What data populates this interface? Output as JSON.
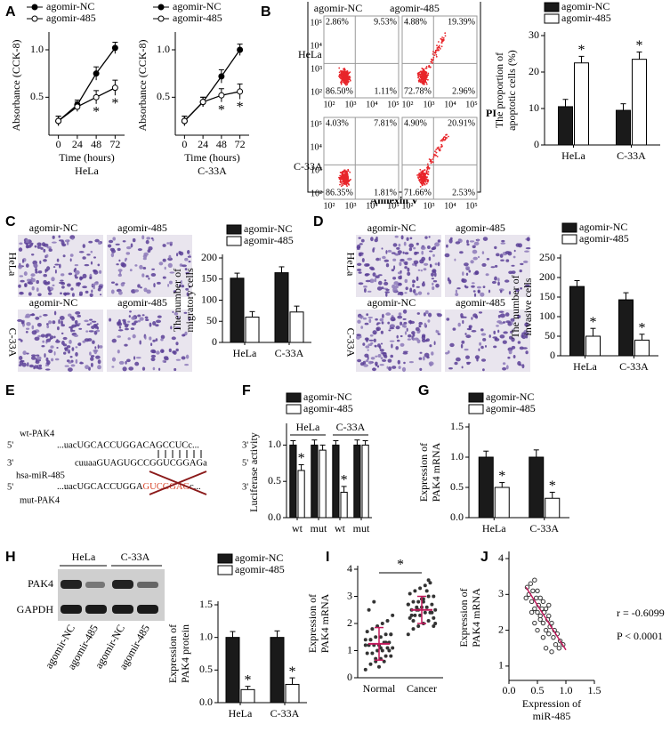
{
  "panel_labels": [
    "A",
    "B",
    "C",
    "D",
    "E",
    "F",
    "G",
    "H",
    "I",
    "J"
  ],
  "chart_data": [
    {
      "type": "line",
      "subtitle": "HeLa",
      "xlabel": "Time (hours)",
      "ylabel": "Absorbance (CCK-8)",
      "x": [
        0,
        24,
        48,
        72
      ],
      "xlim": [
        -12,
        84
      ],
      "xticks": [
        0,
        24,
        48,
        72
      ],
      "ylim": [
        0.1,
        1.15
      ],
      "yticks": [
        0.5,
        {
          "value": 1,
          "label": "1.0"
        }
      ],
      "series": [
        {
          "name": "agomir-NC",
          "color": "#000000",
          "marker": "filled",
          "values": [
            0.25,
            0.42,
            0.75,
            1.02
          ],
          "errors": [
            0.05,
            0.05,
            0.07,
            0.06
          ]
        },
        {
          "name": "agomir-485",
          "color": "#000000",
          "marker": "open",
          "values": [
            0.25,
            0.4,
            0.5,
            0.6
          ],
          "errors": [
            0.05,
            0.05,
            0.07,
            0.08
          ],
          "significance": [
            null,
            null,
            "*",
            "*"
          ]
        }
      ]
    },
    {
      "type": "line",
      "subtitle": "C-33A",
      "xlabel": "Time (hours)",
      "ylabel": "Absorbance (CCK-8)",
      "x": [
        0,
        24,
        48,
        72
      ],
      "xlim": [
        -12,
        84
      ],
      "xticks": [
        0,
        24,
        48,
        72
      ],
      "ylim": [
        0.1,
        1.15
      ],
      "yticks": [
        0.5,
        {
          "value": 1,
          "label": "1.0"
        }
      ],
      "series": [
        {
          "name": "agomir-NC",
          "color": "#000000",
          "marker": "filled",
          "values": [
            0.25,
            0.45,
            0.72,
            1.0
          ],
          "errors": [
            0.05,
            0.05,
            0.07,
            0.06
          ]
        },
        {
          "name": "agomir-485",
          "color": "#000000",
          "marker": "open",
          "values": [
            0.25,
            0.45,
            0.52,
            0.56
          ],
          "errors": [
            0.05,
            0.05,
            0.07,
            0.08
          ],
          "significance": [
            null,
            null,
            "*",
            "*"
          ]
        }
      ]
    },
    {
      "type": "bar",
      "ylabel": [
        "The proportion of",
        "apoptotic cells (%)"
      ],
      "categories": [
        "HeLa",
        "C-33A"
      ],
      "ylim": [
        0,
        30
      ],
      "yticks": [
        0,
        10,
        20,
        30
      ],
      "series": [
        {
          "name": "agomir-NC",
          "color": "#1a1a1a",
          "values": [
            10.5,
            9.5
          ],
          "errors": [
            2,
            1.8
          ]
        },
        {
          "name": "agomir-485",
          "color": "#ffffff",
          "values": [
            22.5,
            23.5
          ],
          "errors": [
            1.8,
            2
          ],
          "significance": [
            "*",
            "*"
          ]
        }
      ]
    },
    {
      "type": "bar",
      "ylabel": [
        "The number of",
        "migratory cells"
      ],
      "categories": [
        "HeLa",
        "C-33A"
      ],
      "ylim": [
        0,
        200
      ],
      "yticks": [
        0,
        50,
        100,
        150,
        200
      ],
      "series": [
        {
          "name": "agomir-NC",
          "color": "#1a1a1a",
          "values": [
            152,
            165
          ],
          "errors": [
            12,
            14
          ]
        },
        {
          "name": "agomir-485",
          "color": "#ffffff",
          "values": [
            60,
            72
          ],
          "errors": [
            13,
            14
          ]
        }
      ]
    },
    {
      "type": "bar",
      "ylabel": [
        "The number of",
        "invasive cells"
      ],
      "categories": [
        "HeLa",
        "C-33A"
      ],
      "ylim": [
        0,
        250
      ],
      "yticks": [
        0,
        50,
        100,
        150,
        200,
        250
      ],
      "series": [
        {
          "name": "agomir-NC",
          "color": "#1a1a1a",
          "values": [
            177,
            143
          ],
          "errors": [
            15,
            18
          ]
        },
        {
          "name": "agomir-485",
          "color": "#ffffff",
          "values": [
            50,
            40
          ],
          "errors": [
            20,
            15
          ],
          "significance": [
            "*",
            "*"
          ]
        }
      ]
    },
    {
      "type": "bar",
      "ylabel": "Luciferase activity",
      "categories": [
        "wt",
        "mut",
        "wt",
        "mut"
      ],
      "groups": [
        "HeLa",
        "C-33A"
      ],
      "ylim": [
        0,
        1.25
      ],
      "yticks": [
        {
          "value": 0,
          "label": "0.0"
        },
        0.5,
        {
          "value": 1,
          "label": "1.0"
        }
      ],
      "series": [
        {
          "name": "agomir-NC",
          "color": "#1a1a1a",
          "values": [
            1.0,
            1.0,
            1.0,
            1.0
          ],
          "errors": [
            0.06,
            0.07,
            0.06,
            0.07
          ]
        },
        {
          "name": "agomir-485",
          "color": "#ffffff",
          "values": [
            0.65,
            0.93,
            0.35,
            1.0
          ],
          "errors": [
            0.08,
            0.07,
            0.08,
            0.06
          ],
          "significance": [
            "*",
            null,
            "*",
            null
          ]
        }
      ]
    },
    {
      "type": "bar",
      "ylabel": [
        "Expression of",
        "PAK4 mRNA"
      ],
      "categories": [
        "HeLa",
        "C-33A"
      ],
      "ylim": [
        0,
        1.5
      ],
      "yticks": [
        {
          "value": 0,
          "label": "0.0"
        },
        0.5,
        {
          "value": 1,
          "label": "1.0"
        },
        1.5
      ],
      "series": [
        {
          "name": "agomir-NC",
          "color": "#1a1a1a",
          "values": [
            1.0,
            1.0
          ],
          "errors": [
            0.1,
            0.12
          ]
        },
        {
          "name": "agomir-485",
          "color": "#ffffff",
          "values": [
            0.5,
            0.32
          ],
          "errors": [
            0.08,
            0.1
          ],
          "significance": [
            "*",
            "*"
          ]
        }
      ]
    },
    {
      "type": "bar",
      "ylabel": [
        "Expression of",
        "PAK4 protein"
      ],
      "categories": [
        "HeLa",
        "C-33A"
      ],
      "ylim": [
        0,
        1.5
      ],
      "yticks": [
        {
          "value": 0,
          "label": "0.0"
        },
        0.5,
        {
          "value": 1,
          "label": "1.0"
        },
        1.5
      ],
      "series": [
        {
          "name": "agomir-NC",
          "color": "#1a1a1a",
          "values": [
            1.0,
            1.0
          ],
          "errors": [
            0.09,
            0.1
          ]
        },
        {
          "name": "agomir-485",
          "color": "#ffffff",
          "values": [
            0.2,
            0.28
          ],
          "errors": [
            0.05,
            0.1
          ],
          "significance": [
            "*",
            "*"
          ]
        }
      ]
    },
    {
      "type": "strip",
      "ylabel": [
        "Expression of",
        "PAK4 mRNA"
      ],
      "categories": [
        "Normal",
        "Cancer"
      ],
      "ylim": [
        0,
        4
      ],
      "yticks": [
        0,
        1,
        2,
        3,
        4
      ],
      "color": "#333333",
      "summary_color": "#c2185b",
      "annotation": "*",
      "values": [
        [
          0.3,
          0.5,
          0.6,
          0.7,
          0.8,
          0.8,
          0.9,
          0.9,
          1.0,
          1.0,
          1.1,
          1.1,
          1.2,
          1.2,
          1.2,
          1.3,
          1.3,
          1.4,
          1.4,
          1.5,
          1.5,
          1.6,
          1.6,
          1.7,
          1.8,
          1.9,
          2.0,
          2.1,
          2.3,
          2.5,
          2.8,
          0.4,
          0.6,
          1.0,
          1.2,
          1.4,
          0.7,
          1.1,
          1.3,
          1.6
        ],
        [
          1.6,
          1.8,
          1.9,
          2.0,
          2.1,
          2.2,
          2.2,
          2.3,
          2.3,
          2.4,
          2.4,
          2.5,
          2.5,
          2.5,
          2.6,
          2.6,
          2.7,
          2.7,
          2.8,
          2.8,
          2.9,
          3.0,
          3.0,
          3.1,
          3.2,
          3.3,
          3.4,
          3.5,
          2.0,
          2.3,
          2.6,
          2.9,
          3.2,
          2.4,
          2.7,
          2.1,
          2.5,
          2.8,
          3.6,
          1.9
        ]
      ],
      "means": [
        1.25,
        2.5
      ],
      "sd": [
        0.6,
        0.5
      ]
    },
    {
      "type": "scatter",
      "xlabel": [
        "Expression of",
        "miR-485"
      ],
      "ylabel": [
        "Expression of",
        "PAK4 mRNA"
      ],
      "xlim": [
        0,
        1.5
      ],
      "xticks": [
        {
          "value": 0,
          "label": "0.0"
        },
        0.5,
        {
          "value": 1,
          "label": "1.0"
        },
        1.5
      ],
      "ylim": [
        0.6,
        4.1
      ],
      "yticks": [
        1,
        2,
        3,
        4
      ],
      "color": "#333333",
      "trend_color": "#c2185b",
      "x": [
        0.32,
        0.35,
        0.38,
        0.4,
        0.42,
        0.45,
        0.45,
        0.48,
        0.5,
        0.5,
        0.52,
        0.55,
        0.55,
        0.58,
        0.6,
        0.6,
        0.62,
        0.65,
        0.65,
        0.68,
        0.7,
        0.7,
        0.72,
        0.75,
        0.78,
        0.8,
        0.82,
        0.85,
        0.88,
        0.9,
        0.4,
        0.5,
        0.6,
        0.7,
        0.55,
        0.65,
        0.45,
        0.75,
        0.95,
        0.3
      ],
      "values": [
        3.2,
        3.0,
        3.3,
        2.8,
        3.1,
        2.6,
        3.4,
        2.9,
        2.5,
        3.1,
        2.7,
        2.4,
        2.9,
        2.6,
        2.2,
        2.8,
        2.5,
        2.0,
        2.6,
        2.3,
        1.9,
        2.4,
        2.1,
        2.2,
        1.8,
        2.0,
        1.6,
        1.9,
        1.5,
        1.7,
        2.5,
        2.0,
        1.8,
        2.7,
        2.3,
        1.5,
        2.2,
        1.4,
        1.6,
        2.9
      ],
      "trendline": {
        "x": [
          0.3,
          1.0
        ],
        "values": [
          3.2,
          1.45
        ]
      },
      "annotations": [
        "r = -0.6099",
        "P < 0.0001"
      ]
    }
  ],
  "flow_cytometry": {
    "columns": [
      "agomir-NC",
      "agomir-485"
    ],
    "rows": [
      "HeLa",
      "C-33A"
    ],
    "xlabel": "Annexin V",
    "ylabel": "PI",
    "ticks": [
      "10²",
      "10³",
      "10⁴",
      "10⁵"
    ],
    "quadrants": [
      [
        [
          "2.86%",
          "9.53%",
          "86.50%",
          "1.11%"
        ],
        [
          "4.88%",
          "19.39%",
          "72.78%",
          "2.96%"
        ]
      ],
      [
        [
          "4.03%",
          "7.81%",
          "86.35%",
          "1.81%"
        ],
        [
          "4.90%",
          "20.91%",
          "71.66%",
          "2.53%"
        ]
      ]
    ]
  },
  "migration_images": {
    "columns": [
      "agomir-NC",
      "agomir-485"
    ],
    "rows": [
      "HeLa",
      "C-33A"
    ]
  },
  "invasion_images": {
    "columns": [
      "agomir-NC",
      "agomir-485"
    ],
    "rows": [
      "HeLa",
      "C-33A"
    ]
  },
  "sequence": {
    "wt_label": "wt-PAK4",
    "mir_label": "hsa-miR-485",
    "mut_label": "mut-PAK4",
    "lines": [
      {
        "start": "5'",
        "seq": "...uacUGCACCUGGACAGCCUCc...",
        "end": "3'"
      },
      {
        "start": "3'",
        "seq": "cuuaaGUAGUGCCGGUCGGAGa",
        "end": "5'"
      },
      {
        "start": "5'",
        "seq": "...uacUGCACCUGGA",
        "mutated": "GUCGGAG",
        "seq_end": "c...",
        "end": "3'"
      }
    ]
  },
  "western_blot": {
    "groups": [
      "HeLa",
      "C-33A"
    ],
    "proteins": [
      "PAK4",
      "GAPDH"
    ],
    "lanes": [
      "agomir-NC",
      "agomir-485",
      "agomir-NC",
      "agomir-485"
    ]
  }
}
